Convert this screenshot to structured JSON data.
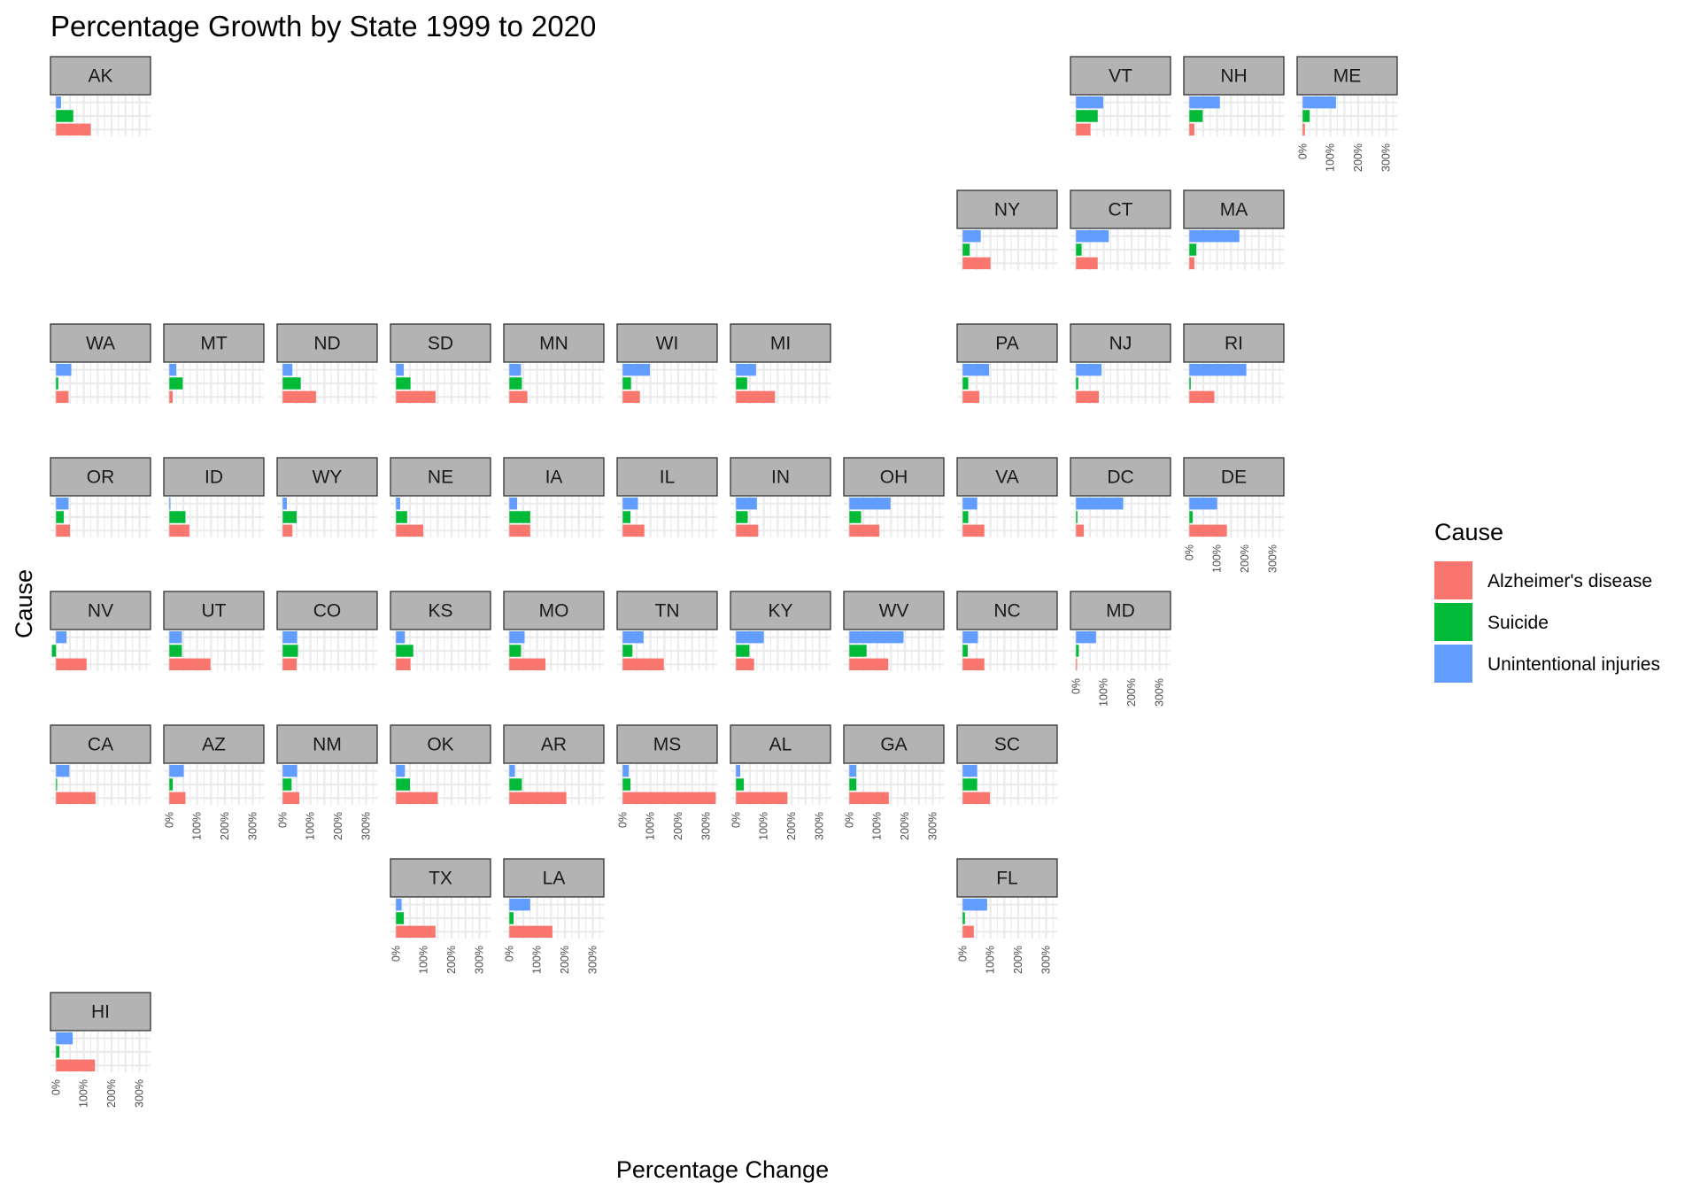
{
  "chart_data": {
    "type": "bar",
    "orientation": "horizontal",
    "title": "Percentage Growth by State 1999 to 2020",
    "xlabel": "Percentage Change",
    "ylabel": "Cause",
    "xlim": [
      -20,
      340
    ],
    "xticks": [
      0,
      100,
      200,
      300
    ],
    "xtick_labels": [
      "0%",
      "100%",
      "200%",
      "300%"
    ],
    "grid": true,
    "legend": {
      "title": "Cause",
      "position": "right",
      "entries": [
        {
          "name": "Alzheimer's disease",
          "color": "#F8766D"
        },
        {
          "name": "Suicide",
          "color": "#00BA38"
        },
        {
          "name": "Unintentional injuries",
          "color": "#619CFF"
        }
      ]
    },
    "categories": [
      "Alzheimer's disease",
      "Suicide",
      "Unintentional injuries"
    ],
    "panels": [
      {
        "state": "AK",
        "row": 0,
        "col": 0,
        "values": [
          125,
          62,
          18
        ],
        "show_x_axis": false
      },
      {
        "state": "VT",
        "row": 0,
        "col": 9,
        "values": [
          52,
          78,
          98
        ],
        "show_x_axis": false
      },
      {
        "state": "NH",
        "row": 0,
        "col": 10,
        "values": [
          18,
          48,
          110
        ],
        "show_x_axis": false
      },
      {
        "state": "ME",
        "row": 0,
        "col": 11,
        "values": [
          8,
          25,
          120
        ],
        "show_x_axis": true
      },
      {
        "state": "NY",
        "row": 1,
        "col": 8,
        "values": [
          100,
          25,
          65
        ],
        "show_x_axis": false
      },
      {
        "state": "CT",
        "row": 1,
        "col": 9,
        "values": [
          78,
          20,
          118
        ],
        "show_x_axis": false
      },
      {
        "state": "MA",
        "row": 1,
        "col": 10,
        "values": [
          18,
          25,
          180
        ],
        "show_x_axis": false
      },
      {
        "state": "WA",
        "row": 2,
        "col": 0,
        "values": [
          45,
          8,
          55
        ],
        "show_x_axis": false
      },
      {
        "state": "MT",
        "row": 2,
        "col": 1,
        "values": [
          12,
          48,
          25
        ],
        "show_x_axis": false
      },
      {
        "state": "ND",
        "row": 2,
        "col": 2,
        "values": [
          120,
          65,
          35
        ],
        "show_x_axis": false
      },
      {
        "state": "SD",
        "row": 2,
        "col": 3,
        "values": [
          142,
          52,
          28
        ],
        "show_x_axis": false
      },
      {
        "state": "MN",
        "row": 2,
        "col": 4,
        "values": [
          65,
          45,
          42
        ],
        "show_x_axis": false
      },
      {
        "state": "WI",
        "row": 2,
        "col": 5,
        "values": [
          62,
          30,
          98
        ],
        "show_x_axis": false
      },
      {
        "state": "MI",
        "row": 2,
        "col": 6,
        "values": [
          140,
          40,
          72
        ],
        "show_x_axis": false
      },
      {
        "state": "PA",
        "row": 2,
        "col": 8,
        "values": [
          60,
          20,
          95
        ],
        "show_x_axis": false
      },
      {
        "state": "NJ",
        "row": 2,
        "col": 9,
        "values": [
          82,
          8,
          92
        ],
        "show_x_axis": false
      },
      {
        "state": "RI",
        "row": 2,
        "col": 10,
        "values": [
          90,
          5,
          205
        ],
        "show_x_axis": false
      },
      {
        "state": "OR",
        "row": 3,
        "col": 0,
        "values": [
          50,
          28,
          45
        ],
        "show_x_axis": false
      },
      {
        "state": "ID",
        "row": 3,
        "col": 1,
        "values": [
          72,
          58,
          4
        ],
        "show_x_axis": false
      },
      {
        "state": "WY",
        "row": 3,
        "col": 2,
        "values": [
          35,
          50,
          15
        ],
        "show_x_axis": false
      },
      {
        "state": "NE",
        "row": 3,
        "col": 3,
        "values": [
          98,
          40,
          15
        ],
        "show_x_axis": false
      },
      {
        "state": "IA",
        "row": 3,
        "col": 4,
        "values": [
          75,
          75,
          28
        ],
        "show_x_axis": false
      },
      {
        "state": "IL",
        "row": 3,
        "col": 5,
        "values": [
          78,
          28,
          55
        ],
        "show_x_axis": false
      },
      {
        "state": "IN",
        "row": 3,
        "col": 6,
        "values": [
          80,
          42,
          75
        ],
        "show_x_axis": false
      },
      {
        "state": "OH",
        "row": 3,
        "col": 7,
        "values": [
          108,
          42,
          148
        ],
        "show_x_axis": false
      },
      {
        "state": "VA",
        "row": 3,
        "col": 8,
        "values": [
          78,
          20,
          52
        ],
        "show_x_axis": false
      },
      {
        "state": "DC",
        "row": 3,
        "col": 9,
        "values": [
          28,
          5,
          170
        ],
        "show_x_axis": false
      },
      {
        "state": "DE",
        "row": 3,
        "col": 10,
        "values": [
          135,
          12,
          100
        ],
        "show_x_axis": true
      },
      {
        "state": "NV",
        "row": 4,
        "col": 0,
        "values": [
          110,
          -15,
          38
        ],
        "show_x_axis": false
      },
      {
        "state": "UT",
        "row": 4,
        "col": 1,
        "values": [
          148,
          45,
          45
        ],
        "show_x_axis": false
      },
      {
        "state": "CO",
        "row": 4,
        "col": 2,
        "values": [
          50,
          55,
          52
        ],
        "show_x_axis": false
      },
      {
        "state": "KS",
        "row": 4,
        "col": 3,
        "values": [
          52,
          62,
          32
        ],
        "show_x_axis": false
      },
      {
        "state": "MO",
        "row": 4,
        "col": 4,
        "values": [
          130,
          42,
          55
        ],
        "show_x_axis": false
      },
      {
        "state": "TN",
        "row": 4,
        "col": 5,
        "values": [
          148,
          35,
          75
        ],
        "show_x_axis": false
      },
      {
        "state": "KY",
        "row": 4,
        "col": 6,
        "values": [
          65,
          48,
          100
        ],
        "show_x_axis": false
      },
      {
        "state": "WV",
        "row": 4,
        "col": 7,
        "values": [
          140,
          62,
          195
        ],
        "show_x_axis": false
      },
      {
        "state": "NC",
        "row": 4,
        "col": 8,
        "values": [
          78,
          18,
          55
        ],
        "show_x_axis": false
      },
      {
        "state": "MD",
        "row": 4,
        "col": 9,
        "values": [
          3,
          10,
          72
        ],
        "show_x_axis": true
      },
      {
        "state": "CA",
        "row": 5,
        "col": 0,
        "values": [
          142,
          2,
          48
        ],
        "show_x_axis": false
      },
      {
        "state": "AZ",
        "row": 5,
        "col": 1,
        "values": [
          58,
          12,
          52
        ],
        "show_x_axis": true
      },
      {
        "state": "NM",
        "row": 5,
        "col": 2,
        "values": [
          60,
          32,
          52
        ],
        "show_x_axis": true
      },
      {
        "state": "OK",
        "row": 5,
        "col": 3,
        "values": [
          150,
          50,
          32
        ],
        "show_x_axis": false
      },
      {
        "state": "AR",
        "row": 5,
        "col": 4,
        "values": [
          205,
          45,
          20
        ],
        "show_x_axis": false
      },
      {
        "state": "MS",
        "row": 5,
        "col": 5,
        "values": [
          335,
          28,
          22
        ],
        "show_x_axis": true
      },
      {
        "state": "AL",
        "row": 5,
        "col": 6,
        "values": [
          185,
          28,
          15
        ],
        "show_x_axis": true
      },
      {
        "state": "GA",
        "row": 5,
        "col": 7,
        "values": [
          142,
          25,
          25
        ],
        "show_x_axis": true
      },
      {
        "state": "SC",
        "row": 5,
        "col": 8,
        "values": [
          98,
          52,
          52
        ],
        "show_x_axis": false
      },
      {
        "state": "TX",
        "row": 6,
        "col": 3,
        "values": [
          142,
          28,
          20
        ],
        "show_x_axis": true
      },
      {
        "state": "LA",
        "row": 6,
        "col": 4,
        "values": [
          155,
          15,
          75
        ],
        "show_x_axis": true
      },
      {
        "state": "FL",
        "row": 6,
        "col": 8,
        "values": [
          40,
          8,
          88
        ],
        "show_x_axis": true
      },
      {
        "state": "HI",
        "row": 7,
        "col": 0,
        "values": [
          140,
          12,
          60
        ],
        "show_x_axis": true
      }
    ]
  }
}
